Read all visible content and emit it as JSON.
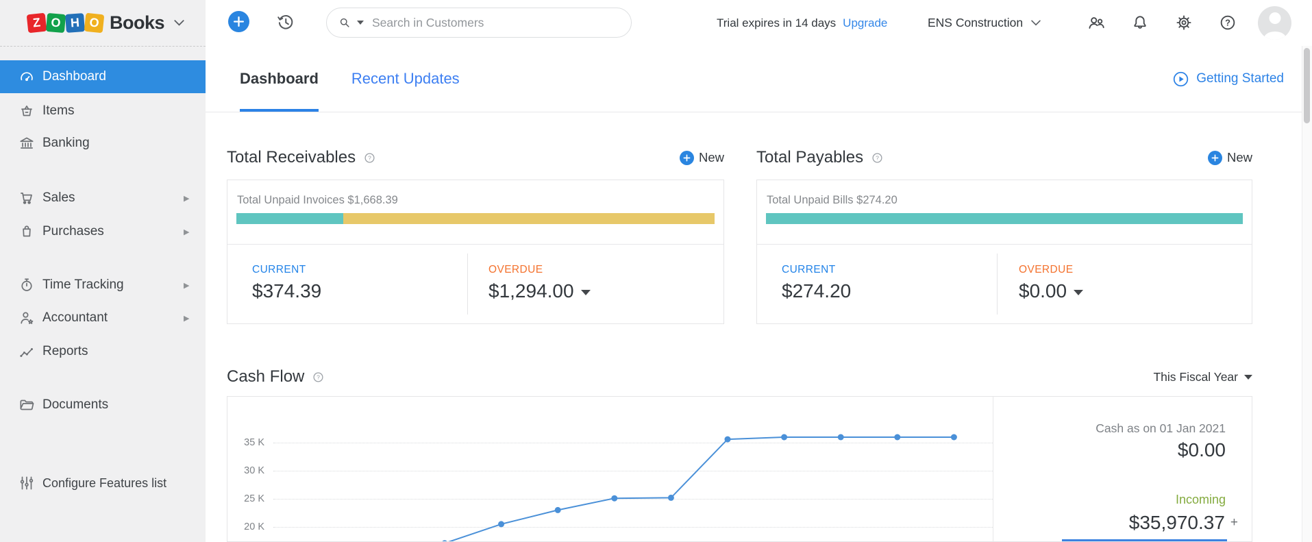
{
  "header": {
    "logo_letters": [
      {
        "char": "Z",
        "bg": "#e8262a"
      },
      {
        "char": "O",
        "bg": "#12a14b"
      },
      {
        "char": "H",
        "bg": "#2270b8"
      },
      {
        "char": "O",
        "bg": "#f0b01f"
      }
    ],
    "product_name": "Books",
    "search_placeholder": "Search in Customers",
    "trial_text": "Trial expires in 14 days",
    "upgrade_label": "Upgrade",
    "organization": "ENS Construction",
    "icon_names": [
      "plus-icon",
      "history-icon",
      "search-icon",
      "referral-users-icon",
      "notifications-bell-icon",
      "settings-gear-icon",
      "help-icon",
      "avatar"
    ]
  },
  "sidebar": {
    "items": [
      {
        "label": "Dashboard",
        "selected": true,
        "has_submenu": false,
        "icon": "speedometer-icon"
      },
      {
        "label": "Items",
        "has_submenu": false,
        "icon": "basket-icon"
      },
      {
        "label": "Banking",
        "has_submenu": false,
        "icon": "bank-icon"
      },
      {
        "label": "Sales",
        "has_submenu": true,
        "icon": "cart-icon"
      },
      {
        "label": "Purchases",
        "has_submenu": true,
        "icon": "bag-icon"
      },
      {
        "label": "Time Tracking",
        "has_submenu": true,
        "icon": "stopwatch-icon"
      },
      {
        "label": "Accountant",
        "has_submenu": true,
        "icon": "person-star-icon"
      },
      {
        "label": "Reports",
        "has_submenu": false,
        "icon": "trend-dots-icon"
      },
      {
        "label": "Documents",
        "has_submenu": false,
        "icon": "folder-icon"
      },
      {
        "label": "Configure Features list",
        "has_submenu": false,
        "icon": "sliders-icon"
      }
    ]
  },
  "tabs": {
    "dashboard": "Dashboard",
    "recent_updates": "Recent Updates",
    "getting_started": "Getting Started"
  },
  "receivables": {
    "title": "Total Receivables",
    "new_label": "New",
    "summary": "Total Unpaid Invoices $1,668.39",
    "current_label": "CURRENT",
    "current_value": "$374.39",
    "overdue_label": "OVERDUE",
    "overdue_value": "$1,294.00",
    "bar": {
      "current_pct": 22.4,
      "current_color": "#5fc5c0",
      "overdue_color": "#e7c869"
    }
  },
  "payables": {
    "title": "Total Payables",
    "new_label": "New",
    "summary": "Total Unpaid Bills $274.20",
    "current_label": "CURRENT",
    "current_value": "$274.20",
    "overdue_label": "OVERDUE",
    "overdue_value": "$0.00",
    "bar": {
      "current_pct": 100,
      "current_color": "#5fc5c0",
      "overdue_color": "#e7c869"
    }
  },
  "cash_flow": {
    "title": "Cash Flow",
    "period": "This Fiscal Year",
    "cash_label": "Cash as on 01 Jan 2021",
    "cash_value": "$0.00",
    "incoming_label": "Incoming",
    "incoming_value": "$35,970.37",
    "expand_label": "+"
  },
  "chart_data": {
    "type": "line",
    "title": "Cash Flow",
    "period": "This Fiscal Year",
    "x": [
      1,
      2,
      3,
      4,
      5,
      6,
      7,
      8,
      9,
      10
    ],
    "values": [
      17100,
      20500,
      23000,
      25100,
      25200,
      35600,
      35970,
      35970,
      35970,
      35970
    ],
    "ytick_labels": [
      "35 K",
      "30 K",
      "25 K",
      "20 K"
    ],
    "ytick_values": [
      35000,
      30000,
      25000,
      20000
    ],
    "ylim_visible": [
      16500,
      43000
    ],
    "line_color": "#4a90d8",
    "grid": "dotted-horizontal",
    "legend": "none"
  }
}
